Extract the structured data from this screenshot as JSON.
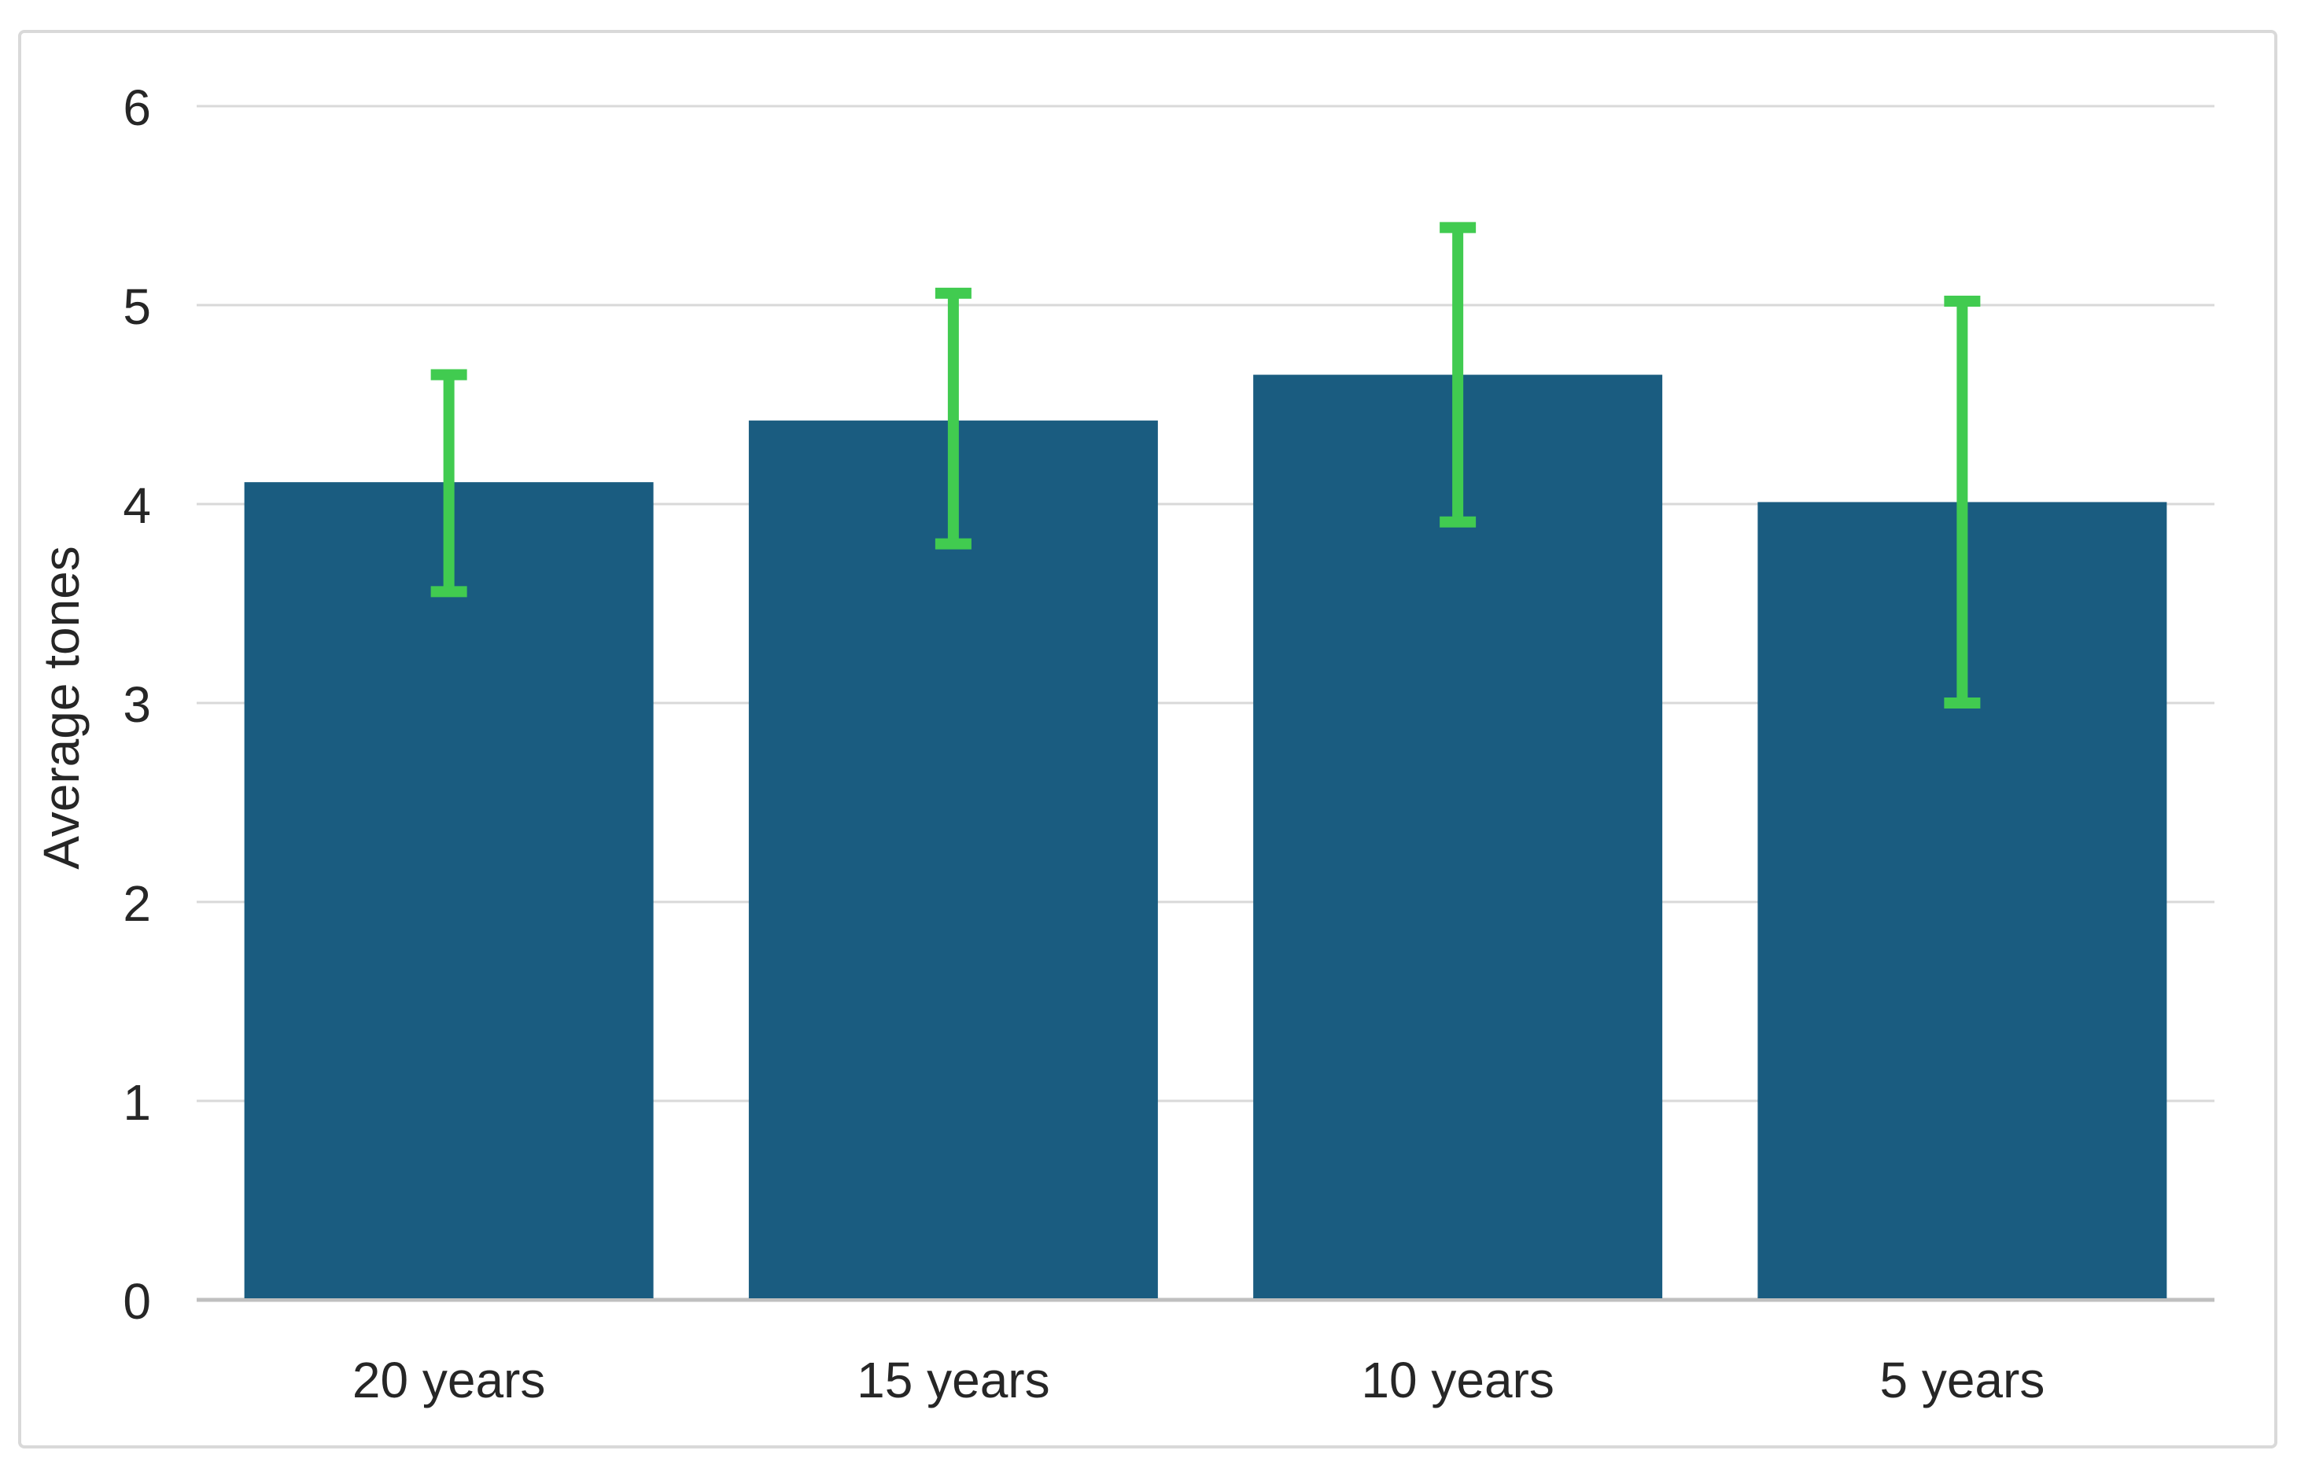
{
  "chart_data": {
    "type": "bar",
    "title": "",
    "xlabel": "",
    "ylabel": "Average tones",
    "categories": [
      "20 years",
      "15 years",
      "10 years",
      "5 years"
    ],
    "values": [
      4.11,
      4.42,
      4.65,
      4.01
    ],
    "error_bars": {
      "upper": [
        4.65,
        5.06,
        5.39,
        5.02
      ],
      "lower": [
        3.56,
        3.8,
        3.91,
        3.0
      ]
    },
    "ylim": [
      0,
      6
    ],
    "yticks": [
      0,
      1,
      2,
      3,
      4,
      5,
      6
    ],
    "grid": true,
    "legend_position": "none",
    "colors": {
      "bar_fill": "#1a5c80",
      "error_bar": "#41cb50",
      "gridline": "#d9d9d9",
      "axis_line": "#bfbfbf",
      "text": "#262626",
      "chart_border": "#d9d9d9",
      "background": "#ffffff"
    }
  }
}
